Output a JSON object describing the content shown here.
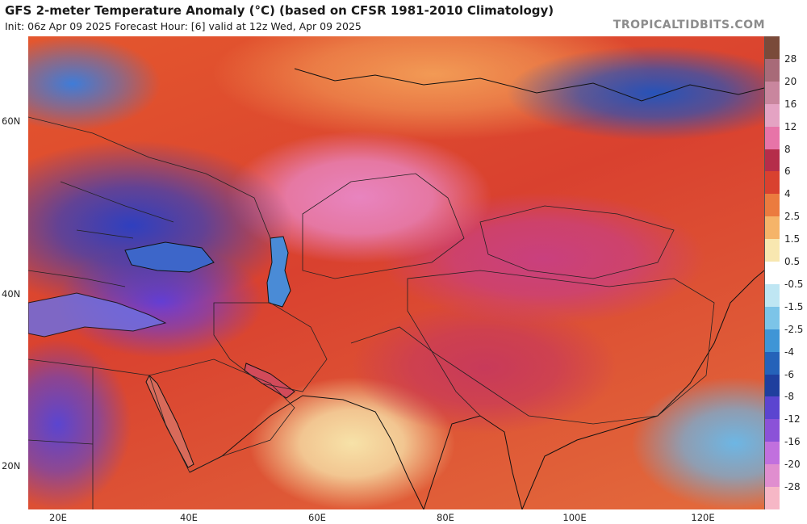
{
  "header": {
    "title": "GFS 2-meter Temperature Anomaly (°C) (based on CFSR 1981-2010 Climatology)",
    "subtitle": "Init: 06z Apr 09 2025    Forecast Hour: [6]    valid at 12z Wed, Apr 09 2025",
    "brand": "TROPICALTIDBITS.COM"
  },
  "map": {
    "lat_labels": [
      "60N",
      "40N",
      "20N"
    ],
    "lon_labels": [
      "20E",
      "40E",
      "60E",
      "80E",
      "100E",
      "120E"
    ]
  },
  "colorbar": {
    "labels": [
      "28",
      "20",
      "16",
      "12",
      "8",
      "6",
      "4",
      "2.5",
      "1.5",
      "0.5",
      "-0.5",
      "-1.5",
      "-2.5",
      "-4",
      "-6",
      "-8",
      "-12",
      "-16",
      "-20",
      "-28"
    ],
    "colors": [
      "#7a4a3a",
      "#a86a78",
      "#c9869e",
      "#e4a3c3",
      "#e774a8",
      "#b52d4a",
      "#d9412f",
      "#eb7b3f",
      "#f5b469",
      "#f8e7b0",
      "#ffffff",
      "#bfe6f3",
      "#7cc4e8",
      "#3f95d6",
      "#2562b9",
      "#1f3f9e",
      "#5b45d0",
      "#8b52d8",
      "#c170de",
      "#e08ecf",
      "#f6b7c6"
    ]
  }
}
